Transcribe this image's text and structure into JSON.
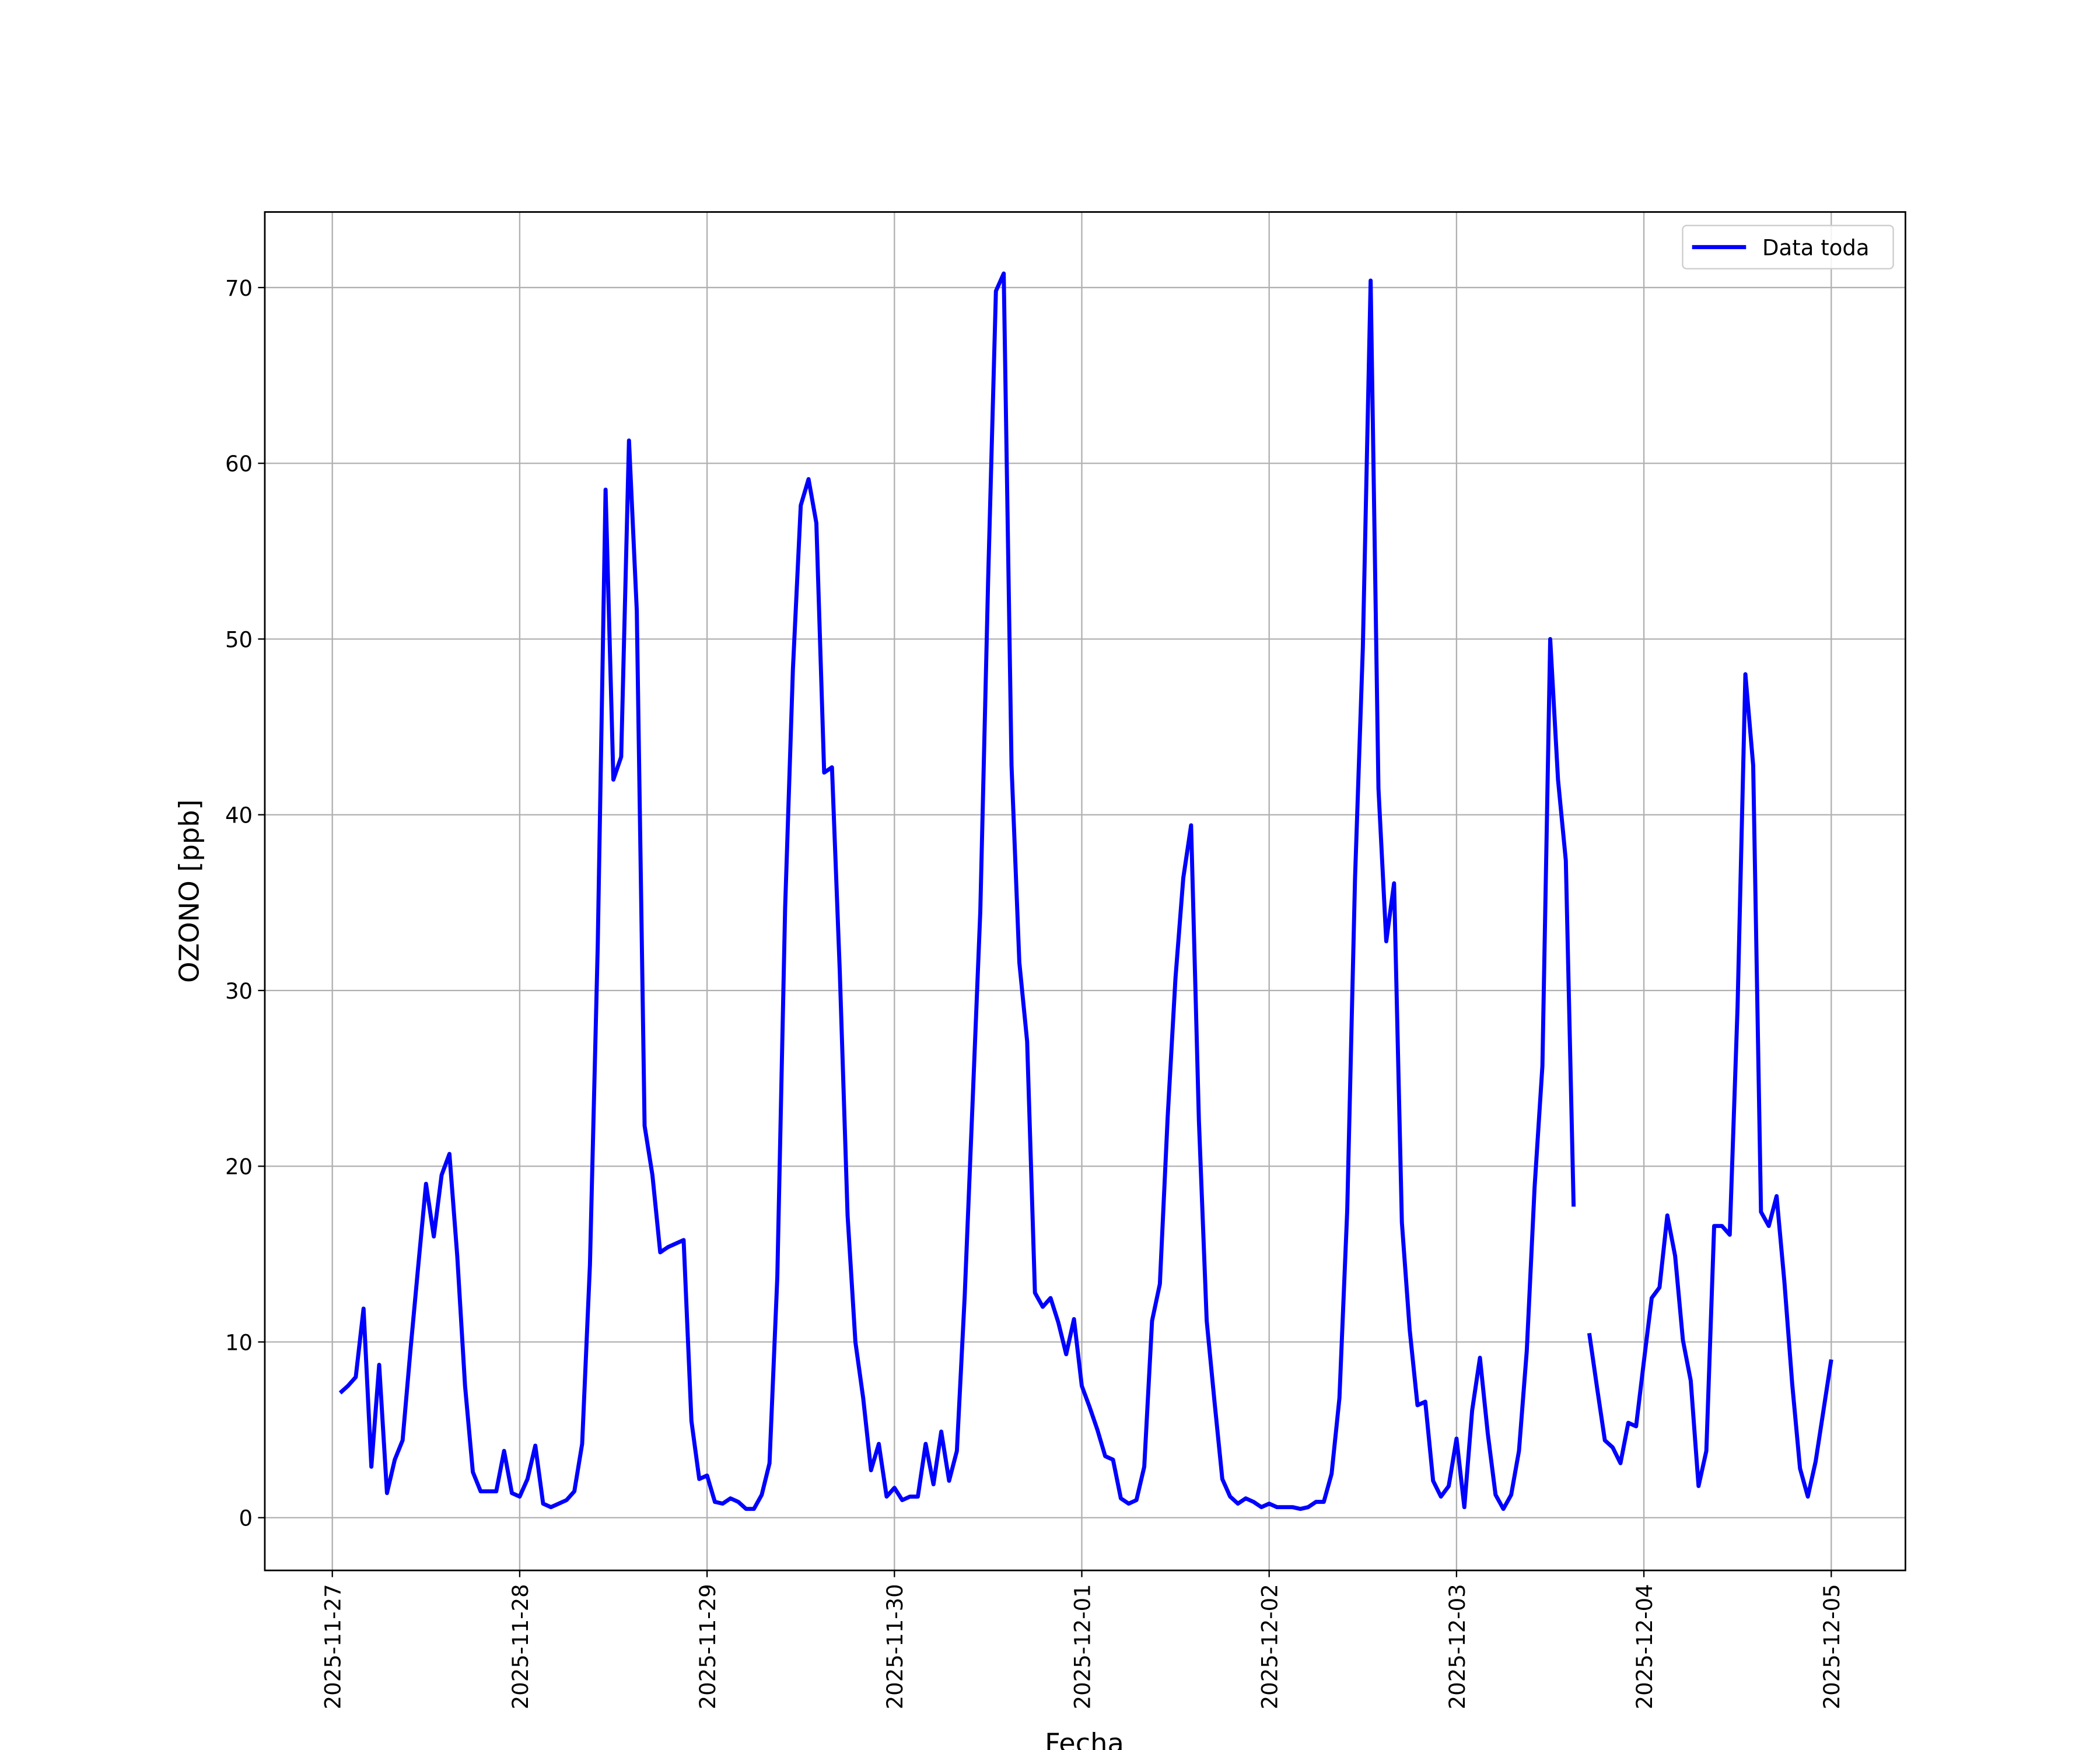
{
  "chart_data": {
    "type": "line",
    "xlabel": "Fecha",
    "ylabel": "OZONO [ppb]",
    "x": [
      "2025-11-27 01:00",
      "2025-11-27 02:00",
      "2025-11-27 03:00",
      "2025-11-27 04:00",
      "2025-11-27 05:00",
      "2025-11-27 06:00",
      "2025-11-27 07:00",
      "2025-11-27 08:00",
      "2025-11-27 09:00",
      "2025-11-27 10:00",
      "2025-11-27 11:00",
      "2025-11-27 12:00",
      "2025-11-27 13:00",
      "2025-11-27 14:00",
      "2025-11-27 15:00",
      "2025-11-27 16:00",
      "2025-11-27 17:00",
      "2025-11-27 18:00",
      "2025-11-27 19:00",
      "2025-11-27 20:00",
      "2025-11-27 21:00",
      "2025-11-27 22:00",
      "2025-11-27 23:00",
      "2025-11-28 00:00",
      "2025-11-28 01:00",
      "2025-11-28 02:00",
      "2025-11-28 03:00",
      "2025-11-28 04:00",
      "2025-11-28 05:00",
      "2025-11-28 06:00",
      "2025-11-28 07:00",
      "2025-11-28 08:00",
      "2025-11-28 09:00",
      "2025-11-28 10:00",
      "2025-11-28 11:00",
      "2025-11-28 12:00",
      "2025-11-28 13:00",
      "2025-11-28 14:00",
      "2025-11-28 15:00",
      "2025-11-28 16:00",
      "2025-11-28 17:00",
      "2025-11-28 18:00",
      "2025-11-28 19:00",
      "2025-11-28 20:00",
      "2025-11-28 21:00",
      "2025-11-28 22:00",
      "2025-11-28 23:00",
      "2025-11-29 00:00",
      "2025-11-29 01:00",
      "2025-11-29 02:00",
      "2025-11-29 03:00",
      "2025-11-29 04:00",
      "2025-11-29 05:00",
      "2025-11-29 06:00",
      "2025-11-29 07:00",
      "2025-11-29 08:00",
      "2025-11-29 09:00",
      "2025-11-29 10:00",
      "2025-11-29 11:00",
      "2025-11-29 12:00",
      "2025-11-29 13:00",
      "2025-11-29 14:00",
      "2025-11-29 15:00",
      "2025-11-29 16:00",
      "2025-11-29 17:00",
      "2025-11-29 18:00",
      "2025-11-29 19:00",
      "2025-11-29 20:00",
      "2025-11-29 21:00",
      "2025-11-29 22:00",
      "2025-11-29 23:00",
      "2025-11-30 00:00",
      "2025-11-30 01:00",
      "2025-11-30 02:00",
      "2025-11-30 03:00",
      "2025-11-30 04:00",
      "2025-11-30 05:00",
      "2025-11-30 06:00",
      "2025-11-30 07:00",
      "2025-11-30 08:00",
      "2025-11-30 09:00",
      "2025-11-30 10:00",
      "2025-11-30 11:00",
      "2025-11-30 12:00",
      "2025-11-30 13:00",
      "2025-11-30 14:00",
      "2025-11-30 15:00",
      "2025-11-30 16:00",
      "2025-11-30 17:00",
      "2025-11-30 18:00",
      "2025-11-30 19:00",
      "2025-11-30 20:00",
      "2025-11-30 21:00",
      "2025-11-30 22:00",
      "2025-11-30 23:00",
      "2025-12-01 00:00",
      "2025-12-01 01:00",
      "2025-12-01 02:00",
      "2025-12-01 03:00",
      "2025-12-01 04:00",
      "2025-12-01 05:00",
      "2025-12-01 06:00",
      "2025-12-01 07:00",
      "2025-12-01 08:00",
      "2025-12-01 09:00",
      "2025-12-01 10:00",
      "2025-12-01 11:00",
      "2025-12-01 12:00",
      "2025-12-01 13:00",
      "2025-12-01 14:00",
      "2025-12-01 15:00",
      "2025-12-01 16:00",
      "2025-12-01 17:00",
      "2025-12-01 18:00",
      "2025-12-01 19:00",
      "2025-12-01 20:00",
      "2025-12-01 21:00",
      "2025-12-01 22:00",
      "2025-12-01 23:00",
      "2025-12-02 00:00",
      "2025-12-02 01:00",
      "2025-12-02 02:00",
      "2025-12-02 03:00",
      "2025-12-02 04:00",
      "2025-12-02 05:00",
      "2025-12-02 06:00",
      "2025-12-02 07:00",
      "2025-12-02 08:00",
      "2025-12-02 09:00",
      "2025-12-02 10:00",
      "2025-12-02 11:00",
      "2025-12-02 12:00",
      "2025-12-02 13:00",
      "2025-12-02 14:00",
      "2025-12-02 15:00",
      "2025-12-02 16:00",
      "2025-12-02 17:00",
      "2025-12-02 18:00",
      "2025-12-02 19:00",
      "2025-12-02 20:00",
      "2025-12-02 21:00",
      "2025-12-02 22:00",
      "2025-12-02 23:00",
      "2025-12-03 00:00",
      "2025-12-03 01:00",
      "2025-12-03 02:00",
      "2025-12-03 03:00",
      "2025-12-03 04:00",
      "2025-12-03 05:00",
      "2025-12-03 06:00",
      "2025-12-03 07:00",
      "2025-12-03 08:00",
      "2025-12-03 09:00",
      "2025-12-03 10:00",
      "2025-12-03 11:00",
      "2025-12-03 12:00",
      "2025-12-03 13:00",
      "2025-12-03 14:00",
      "2025-12-03 15:00",
      "2025-12-03 16:00",
      "2025-12-03 17:00",
      "2025-12-03 18:00",
      "2025-12-03 19:00",
      "2025-12-03 20:00",
      "2025-12-03 21:00",
      "2025-12-03 22:00",
      "2025-12-03 23:00",
      "2025-12-04 00:00",
      "2025-12-04 01:00",
      "2025-12-04 02:00",
      "2025-12-04 03:00",
      "2025-12-04 04:00",
      "2025-12-04 05:00",
      "2025-12-04 06:00",
      "2025-12-04 07:00",
      "2025-12-04 08:00",
      "2025-12-04 09:00",
      "2025-12-04 10:00",
      "2025-12-04 11:00",
      "2025-12-04 12:00",
      "2025-12-04 13:00",
      "2025-12-04 14:00",
      "2025-12-04 15:00",
      "2025-12-04 16:00",
      "2025-12-04 17:00",
      "2025-12-04 18:00",
      "2025-12-04 19:00",
      "2025-12-04 20:00",
      "2025-12-04 21:00",
      "2025-12-04 22:00",
      "2025-12-04 23:00",
      "2025-12-05 00:00"
    ],
    "series": [
      {
        "name": "Data toda",
        "color": "#0000ff",
        "values": [
          7.1,
          7.5,
          8.0,
          11.9,
          2.9,
          8.7,
          1.4,
          3.3,
          4.4,
          9.5,
          14.3,
          19.0,
          16.0,
          19.5,
          20.7,
          14.9,
          7.5,
          2.6,
          1.5,
          1.5,
          1.5,
          3.8,
          1.4,
          1.2,
          2.2,
          4.1,
          0.8,
          0.6,
          0.8,
          1.0,
          1.5,
          4.2,
          14.4,
          32.6,
          58.5,
          42.0,
          43.3,
          61.3,
          51.6,
          22.3,
          19.5,
          15.1,
          15.4,
          15.6,
          15.8,
          5.5,
          2.2,
          2.4,
          0.9,
          0.8,
          1.1,
          0.9,
          0.5,
          0.5,
          1.3,
          3.1,
          13.7,
          34.7,
          48.3,
          57.6,
          59.1,
          56.6,
          42.4,
          42.7,
          31.1,
          17.2,
          10.0,
          6.8,
          2.7,
          4.2,
          1.2,
          1.7,
          1.0,
          1.2,
          1.2,
          4.2,
          1.9,
          4.9,
          2.1,
          3.8,
          12.6,
          23.5,
          34.5,
          53.3,
          69.8,
          70.8,
          42.8,
          31.6,
          27.1,
          12.8,
          12.0,
          12.5,
          11.1,
          9.3,
          11.3,
          7.5,
          6.3,
          5.0,
          3.5,
          3.3,
          1.1,
          0.8,
          1.0,
          2.9,
          11.2,
          13.3,
          22.8,
          30.7,
          36.4,
          39.4,
          22.6,
          11.2,
          6.6,
          2.2,
          1.2,
          0.8,
          1.1,
          0.9,
          0.6,
          0.8,
          0.6,
          0.6,
          0.6,
          0.5,
          0.6,
          0.9,
          0.9,
          2.5,
          6.8,
          17.5,
          36.4,
          49.5,
          70.4,
          41.5,
          32.8,
          36.1,
          16.8,
          10.7,
          6.4,
          6.6,
          2.1,
          1.2,
          1.8,
          4.5,
          0.6,
          6.1,
          9.1,
          4.8,
          1.3,
          0.5,
          1.3,
          3.8,
          9.5,
          18.8,
          25.7,
          50.0,
          42.0,
          37.4,
          17.7,
          null,
          10.5,
          7.4,
          4.4,
          4.0,
          3.1,
          5.4,
          5.2,
          8.9,
          12.5,
          13.1,
          17.2,
          14.9,
          10.1,
          7.8,
          1.8,
          3.8,
          16.6,
          16.6,
          16.1,
          29.1,
          48.0,
          42.8,
          17.4,
          16.6,
          18.3,
          13.4,
          7.6,
          2.8,
          1.2,
          3.2,
          6.1,
          9.0
        ]
      }
    ],
    "xlim": [
      "2025-11-26 15:21",
      "2025-12-05 09:30"
    ],
    "xticks": [
      "2025-11-27",
      "2025-11-28",
      "2025-11-29",
      "2025-11-30",
      "2025-12-01",
      "2025-12-02",
      "2025-12-03",
      "2025-12-04",
      "2025-12-05"
    ],
    "ylim": [
      -3,
      74.3
    ],
    "yticks": [
      0,
      10,
      20,
      30,
      40,
      50,
      60,
      70
    ],
    "grid": true,
    "legend": "upper right"
  }
}
